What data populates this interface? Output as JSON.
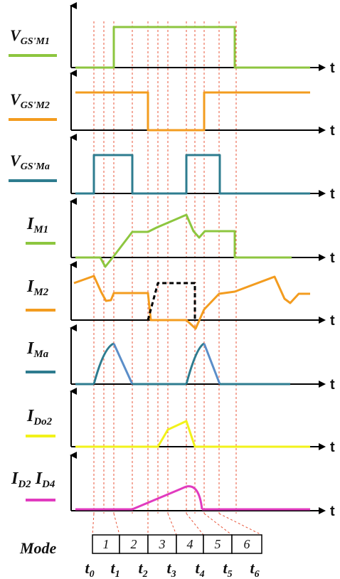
{
  "panels": [
    {
      "id": "vgs-m1",
      "label": "V",
      "sub": "GS'M1",
      "color": "#8dc63f"
    },
    {
      "id": "vgs-m2",
      "label": "V",
      "sub": "GS'M2",
      "color": "#f39c1f"
    },
    {
      "id": "vgs-ma",
      "label": "V",
      "sub": "GS'Ma",
      "color": "#2e7c8f"
    },
    {
      "id": "i-m1",
      "label": "I",
      "sub": "M1",
      "color": "#8dc63f"
    },
    {
      "id": "i-m2",
      "label": "I",
      "sub": "M2",
      "color": "#f39c1f",
      "dashed_color": "#000000"
    },
    {
      "id": "i-ma",
      "label": "I",
      "sub": "Ma",
      "color": "#2e7c8f",
      "fall_color": "#5b8ec9"
    },
    {
      "id": "i-do2",
      "label": "I",
      "sub": "Do2",
      "color": "#f2f21a"
    },
    {
      "id": "i-d2-d4",
      "label": "I",
      "sub": "D2",
      "label2": "I",
      "sub2": "D4",
      "color": "#e13bbf"
    }
  ],
  "axis_label": "t",
  "mode": {
    "title": "Mode",
    "cells": [
      "1",
      "2",
      "3",
      "4",
      "5",
      "6"
    ]
  },
  "time_labels": [
    {
      "t": "t",
      "sub": "0"
    },
    {
      "t": "t",
      "sub": "1"
    },
    {
      "t": "t",
      "sub": "2"
    },
    {
      "t": "t",
      "sub": "3"
    },
    {
      "t": "t",
      "sub": "4"
    },
    {
      "t": "t",
      "sub": "5"
    },
    {
      "t": "t",
      "sub": "6"
    }
  ],
  "guide_color": "#e8553a"
}
